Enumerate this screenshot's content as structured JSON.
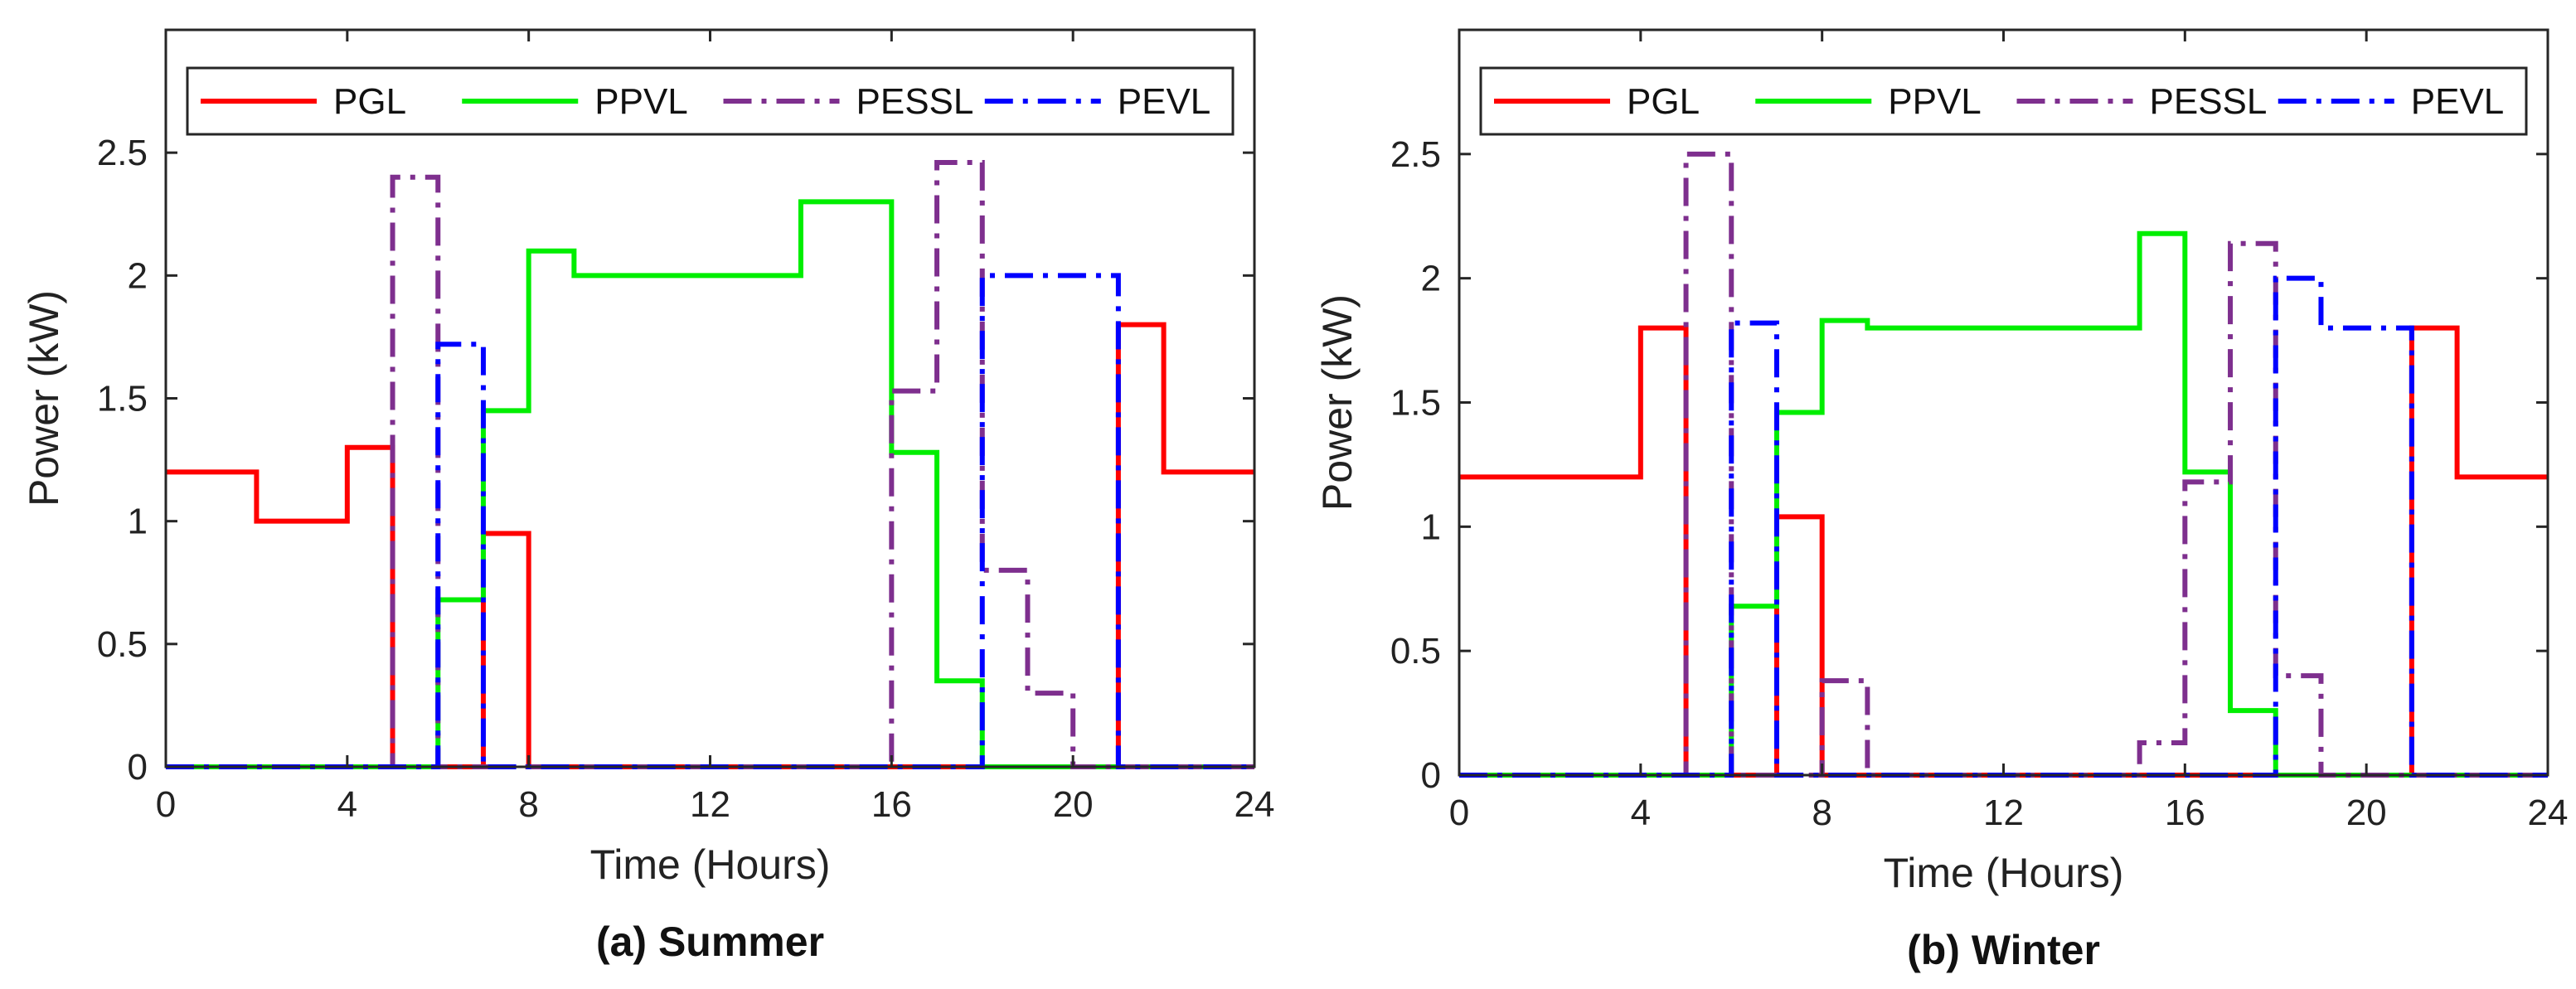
{
  "chart_data": [
    {
      "type": "line",
      "step": true,
      "caption": "(a) Summer",
      "xlabel": "Time (Hours)",
      "ylabel": "Power (kW)",
      "xlim": [
        0,
        24
      ],
      "ylim": [
        0,
        3
      ],
      "xticks": [
        0,
        4,
        8,
        12,
        16,
        20,
        24
      ],
      "yticks": [
        0,
        0.5,
        1,
        1.5,
        2,
        2.5
      ],
      "xtick_labels": [
        "0",
        "4",
        "8",
        "12",
        "16",
        "20",
        "24"
      ],
      "ytick_labels": [
        "0",
        "0.5",
        "1",
        "1.5",
        "2",
        "2.5"
      ],
      "legend_position": "top",
      "series": [
        {
          "name": "PGL",
          "color": "#ff0000",
          "style": "solid",
          "values": [
            1.2,
            1.2,
            1.0,
            1.0,
            1.3,
            0,
            0,
            0.95,
            0,
            0,
            0,
            0,
            0,
            0,
            0,
            0,
            0,
            0,
            0,
            0,
            0,
            1.8,
            1.2,
            1.2
          ]
        },
        {
          "name": "PPVL",
          "color": "#00ee00",
          "style": "solid",
          "values": [
            0,
            0,
            0,
            0,
            0,
            0,
            0.68,
            1.45,
            2.1,
            2.0,
            2.0,
            2.0,
            2.0,
            2.0,
            2.3,
            2.3,
            1.28,
            0.35,
            0,
            0,
            0,
            0,
            0,
            0
          ]
        },
        {
          "name": "PESSL",
          "color": "#7e2f8e",
          "style": "dashdot",
          "values": [
            0,
            0,
            0,
            0,
            0,
            2.4,
            0,
            0,
            0,
            0,
            0,
            0,
            0,
            0,
            0,
            0,
            1.53,
            2.46,
            0.8,
            0.3,
            0,
            0,
            0,
            0
          ]
        },
        {
          "name": "PEVL",
          "color": "#0000ff",
          "style": "dashdot",
          "values": [
            0,
            0,
            0,
            0,
            0,
            0,
            1.72,
            0,
            0,
            0,
            0,
            0,
            0,
            0,
            0,
            0,
            0,
            0,
            2.0,
            2.0,
            2.0,
            0,
            0,
            0
          ]
        }
      ]
    },
    {
      "type": "line",
      "step": true,
      "caption": "(b) Winter",
      "xlabel": "Time (Hours)",
      "ylabel": "Power (kW)",
      "xlim": [
        0,
        24
      ],
      "ylim": [
        0,
        3
      ],
      "xticks": [
        0,
        4,
        8,
        12,
        16,
        20,
        24
      ],
      "yticks": [
        0,
        0.5,
        1,
        1.5,
        2,
        2.5
      ],
      "xtick_labels": [
        "0",
        "4",
        "8",
        "12",
        "16",
        "20",
        "24"
      ],
      "ytick_labels": [
        "0",
        "0.5",
        "1",
        "1.5",
        "2",
        "2.5"
      ],
      "legend_position": "top",
      "series": [
        {
          "name": "PGL",
          "color": "#ff0000",
          "style": "solid",
          "values": [
            1.2,
            1.2,
            1.2,
            1.2,
            1.8,
            0,
            0,
            1.04,
            0,
            0,
            0,
            0,
            0,
            0,
            0,
            0,
            0,
            0,
            0,
            0,
            0,
            1.8,
            1.2,
            1.2
          ]
        },
        {
          "name": "PPVL",
          "color": "#00ee00",
          "style": "solid",
          "values": [
            0,
            0,
            0,
            0,
            0,
            0,
            0.68,
            1.46,
            1.83,
            1.8,
            1.8,
            1.8,
            1.8,
            1.8,
            1.8,
            2.18,
            1.22,
            0.26,
            0,
            0,
            0,
            0,
            0,
            0
          ]
        },
        {
          "name": "PESSL",
          "color": "#7e2f8e",
          "style": "dashdot",
          "values": [
            0,
            0,
            0,
            0,
            0,
            2.5,
            0,
            0,
            0.38,
            0,
            0,
            0,
            0,
            0,
            0,
            0.13,
            1.18,
            2.14,
            0.4,
            0,
            0,
            0,
            0,
            0
          ]
        },
        {
          "name": "PEVL",
          "color": "#0000ff",
          "style": "dashdot",
          "values": [
            0,
            0,
            0,
            0,
            0,
            0,
            1.82,
            0,
            0,
            0,
            0,
            0,
            0,
            0,
            0,
            0,
            0,
            0,
            2.0,
            1.8,
            1.8,
            0,
            0,
            0
          ]
        }
      ]
    }
  ]
}
